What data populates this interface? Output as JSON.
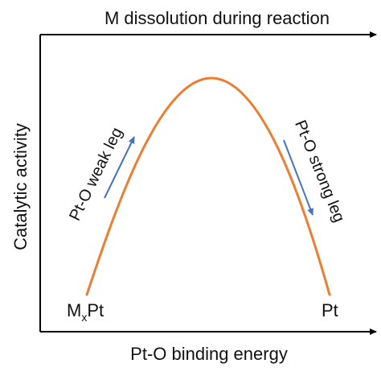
{
  "title_top": "M dissolution during reaction",
  "y_axis_label": "Catalytic activity",
  "x_axis_label": "Pt-O binding energy",
  "left_leg_label": "Pt-O weak leg",
  "right_leg_label": "Pt-O strong leg",
  "left_end_label": {
    "base": "M",
    "subscript": "x",
    "suffix": "Pt"
  },
  "right_end_label": "Pt",
  "colors": {
    "curve": "#ED7D31",
    "arrows": "#4472C4",
    "axes": "#000000",
    "text": "#111111"
  }
}
